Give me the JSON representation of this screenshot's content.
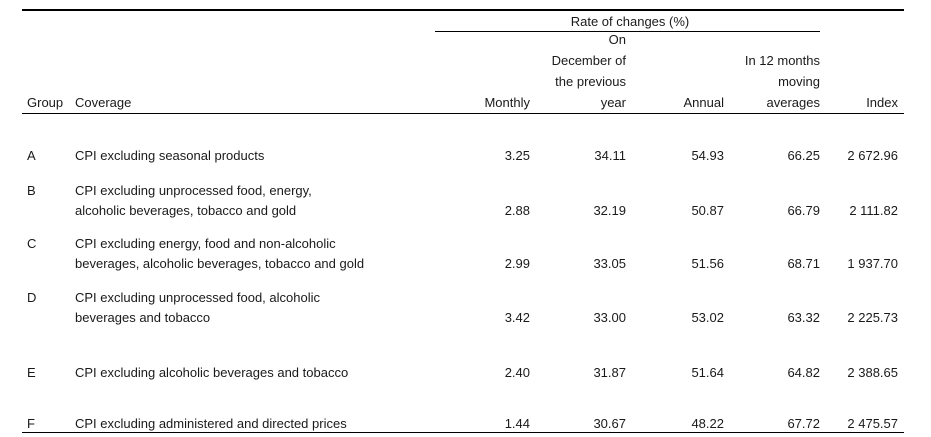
{
  "header": {
    "group_label": "Group",
    "coverage_label": "Coverage",
    "rate_group_label": "Rate of changes (%)",
    "monthly_label": "Monthly",
    "december_label": [
      "On",
      "December of",
      "the previous",
      "year"
    ],
    "annual_label": "Annual",
    "moving_label": [
      "In 12 months",
      "moving",
      "averages"
    ],
    "index_label": "Index"
  },
  "rows": [
    {
      "group": "A",
      "coverage": [
        "CPI excluding seasonal products"
      ],
      "monthly": "3.25",
      "december": "34.11",
      "annual": "54.93",
      "moving": "66.25",
      "index": "2 672.96"
    },
    {
      "group": "B",
      "coverage": [
        "CPI excluding unprocessed food, energy,",
        "alcoholic beverages, tobacco and gold"
      ],
      "monthly": "2.88",
      "december": "32.19",
      "annual": "50.87",
      "moving": "66.79",
      "index": "2 111.82"
    },
    {
      "group": "C",
      "coverage": [
        "CPI excluding energy, food and non-alcoholic",
        "beverages, alcoholic beverages, tobacco and gold"
      ],
      "monthly": "2.99",
      "december": "33.05",
      "annual": "51.56",
      "moving": "68.71",
      "index": "1 937.70"
    },
    {
      "group": "D",
      "coverage": [
        "CPI excluding unprocessed food, alcoholic",
        "beverages and tobacco"
      ],
      "monthly": "3.42",
      "december": "33.00",
      "annual": "53.02",
      "moving": "63.32",
      "index": "2 225.73"
    },
    {
      "group": "E",
      "coverage": [
        "CPI excluding alcoholic beverages and tobacco"
      ],
      "monthly": "2.40",
      "december": "31.87",
      "annual": "51.64",
      "moving": "64.82",
      "index": "2 388.65"
    },
    {
      "group": "F",
      "coverage": [
        "CPI excluding administered and directed prices"
      ],
      "monthly": "1.44",
      "december": "30.67",
      "annual": "48.22",
      "moving": "67.72",
      "index": "2 475.57"
    }
  ]
}
